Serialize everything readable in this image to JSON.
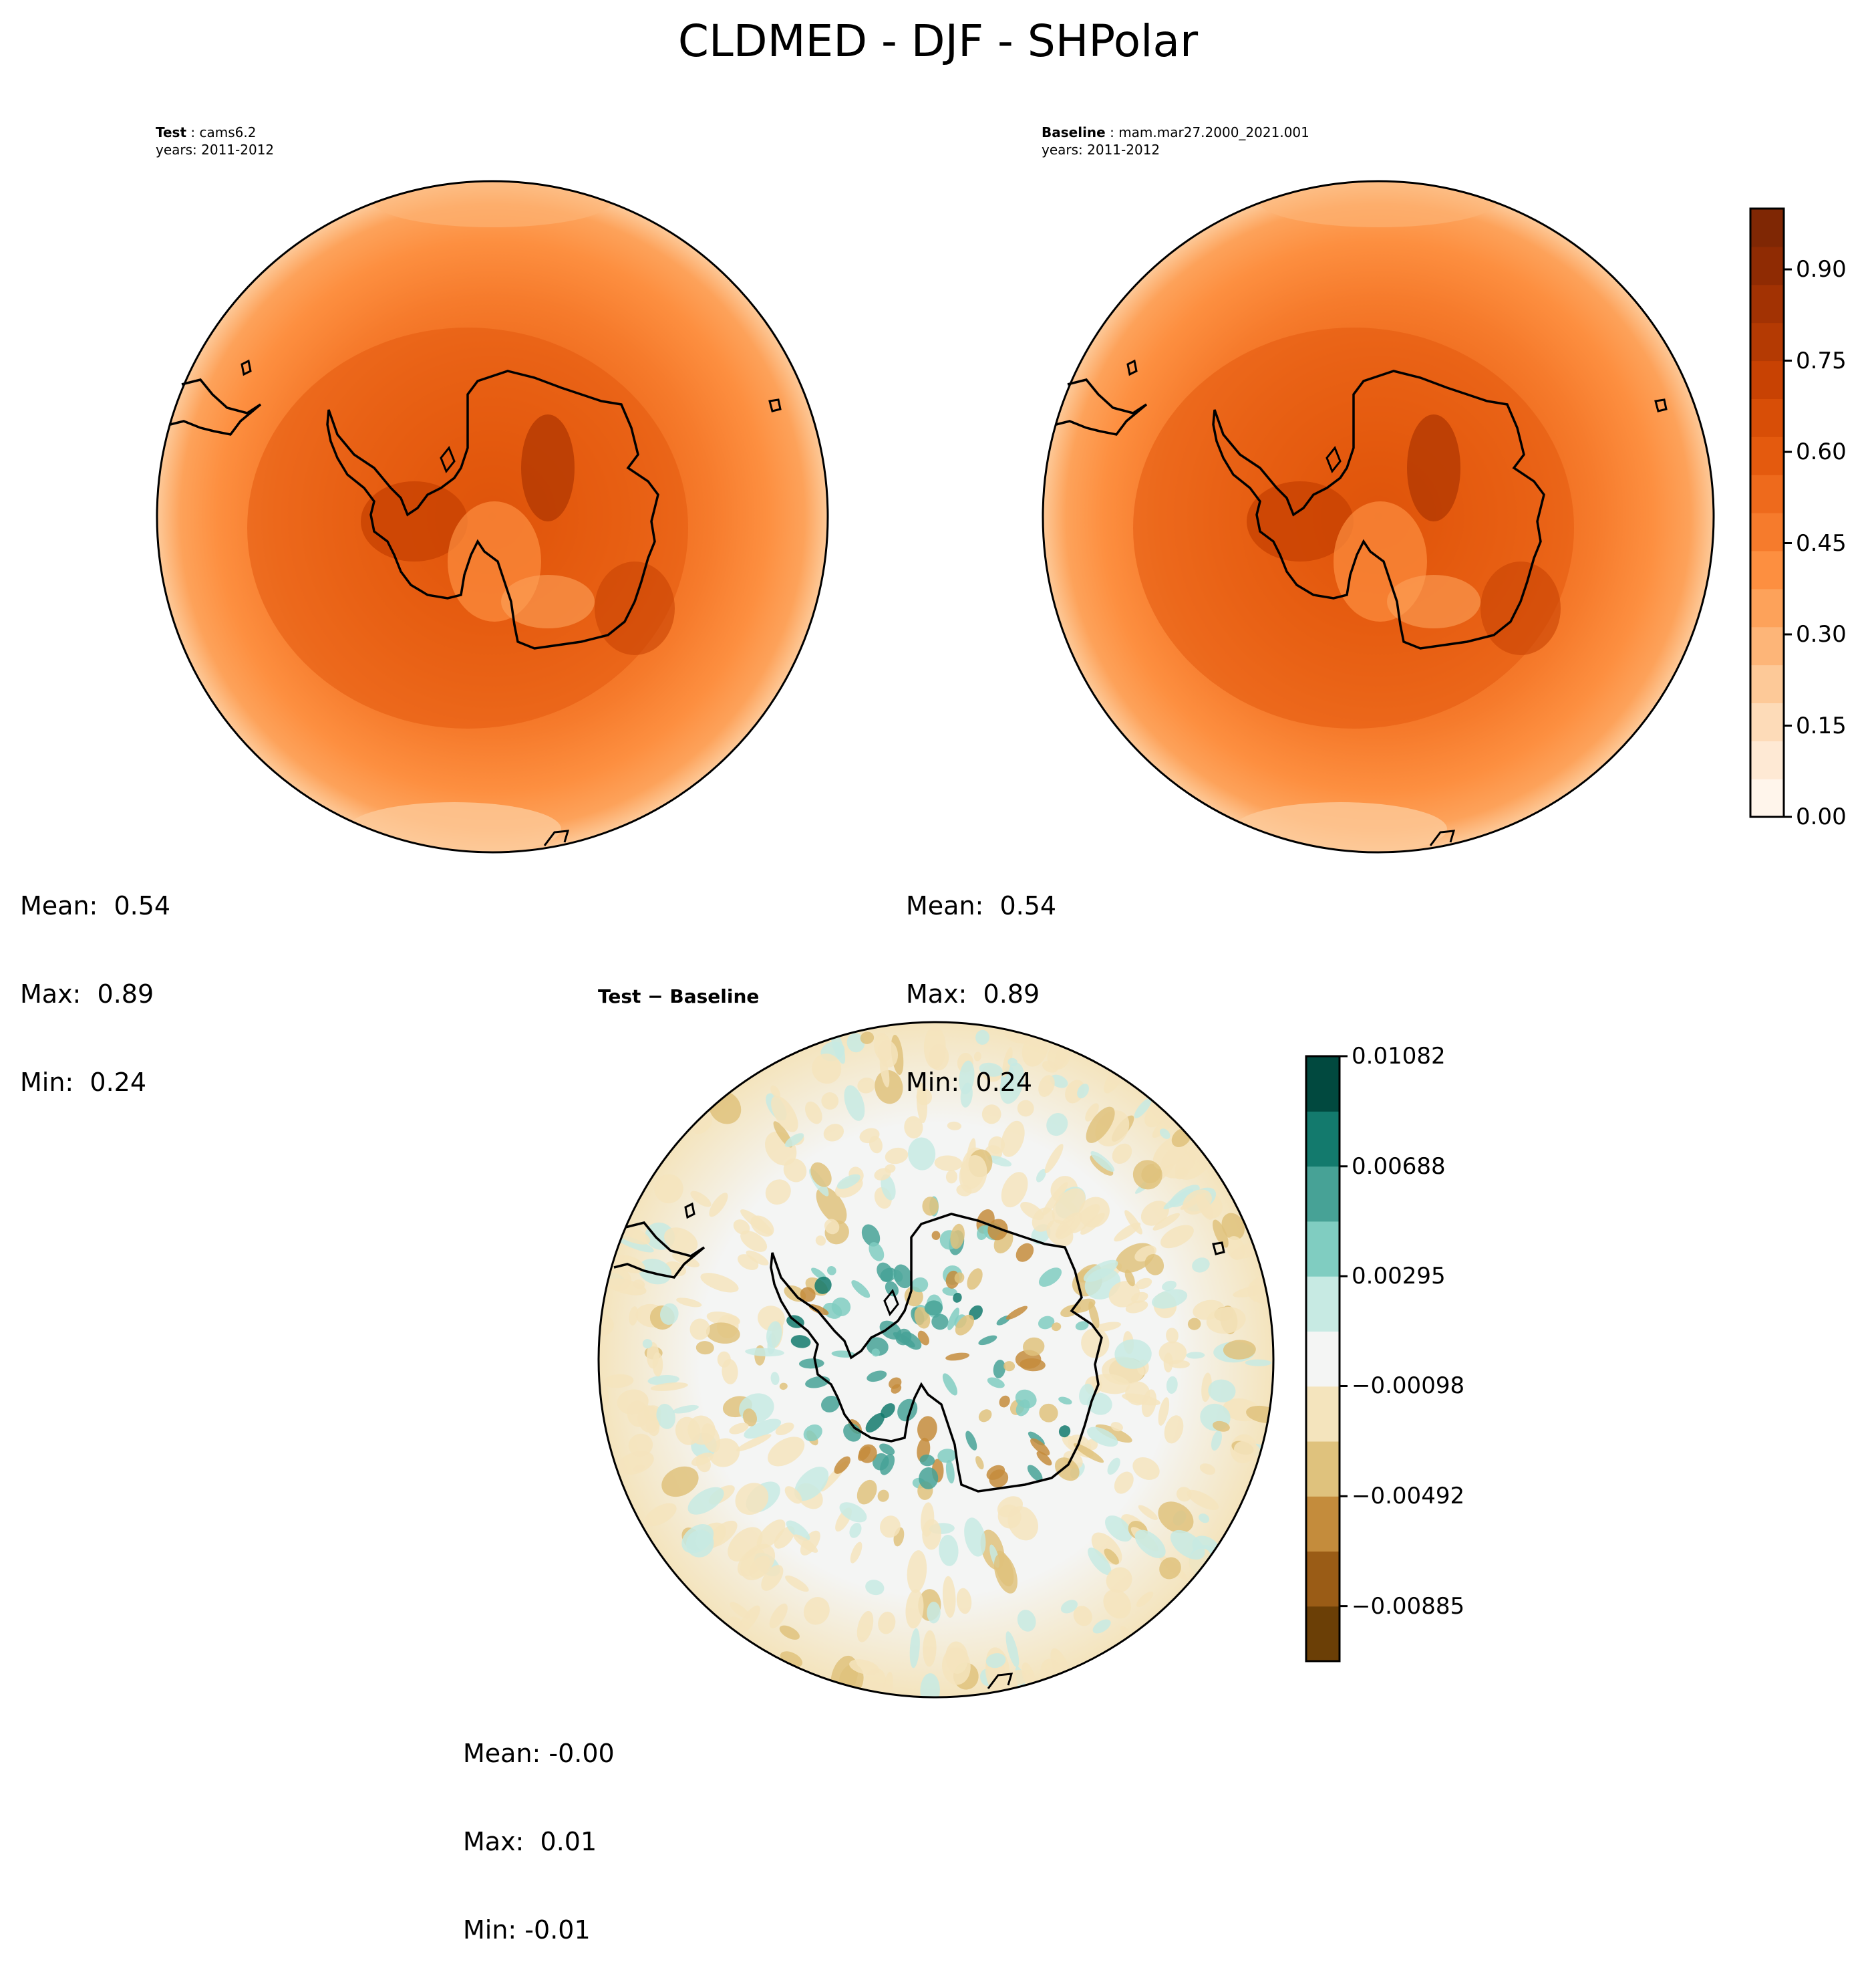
{
  "title": "CLDMED - DJF - SHPolar",
  "panels": {
    "test": {
      "label_key": "Test",
      "label_value": "cams6.2",
      "years": "years: 2011-2012",
      "stats": {
        "mean": "Mean:  0.54",
        "max": "Max:  0.89",
        "min": "Min:  0.24"
      }
    },
    "baseline": {
      "label_key": "Baseline",
      "label_value": "mam.mar27.2000_2021.001",
      "years": "years: 2011-2012",
      "stats": {
        "mean": "Mean:  0.54",
        "max": "Max:  0.89",
        "min": "Min:  0.24"
      }
    },
    "diff": {
      "title": "Test − Baseline",
      "stats": {
        "mean": "Mean: -0.00",
        "max": "Max:  0.01",
        "min": "Min: -0.01"
      }
    }
  },
  "colorbars": {
    "orange": {
      "ticks": [
        "0.00",
        "0.15",
        "0.30",
        "0.45",
        "0.60",
        "0.75",
        "0.90"
      ],
      "tick_values": [
        0.0,
        0.15,
        0.3,
        0.45,
        0.6,
        0.75,
        0.9
      ],
      "range": [
        0.0,
        1.0
      ],
      "colors": [
        "#fff5eb",
        "#fee9d4",
        "#fddbb8",
        "#fdc998",
        "#fdb578",
        "#fda25a",
        "#fd8f40",
        "#f67b2c",
        "#ee6a1c",
        "#e45a0e",
        "#d84e07",
        "#c84203",
        "#b43a03",
        "#a23203",
        "#8f2b03",
        "#7f2704"
      ]
    },
    "diff": {
      "ticks": [
        "0.01082",
        "0.00688",
        "0.00295",
        "−0.00098",
        "−0.00492",
        "−0.00885"
      ],
      "tick_values": [
        0.01082,
        0.00688,
        0.00295,
        -0.00098,
        -0.00492,
        -0.00885
      ],
      "range": [
        -0.01082,
        0.01082
      ],
      "colors": [
        "#6b3f06",
        "#9a5c16",
        "#c48c3c",
        "#dfc27d",
        "#f4e4bd",
        "#f4f5f4",
        "#c7eae3",
        "#80cdc1",
        "#47a296",
        "#137a6d",
        "#01493f"
      ]
    }
  },
  "maps": {
    "field": "cloud fraction (CLDMED)",
    "projection": "south polar stereographic",
    "test_mean": 0.54,
    "baseline_mean": 0.54,
    "diff_mean": -0.0
  }
}
